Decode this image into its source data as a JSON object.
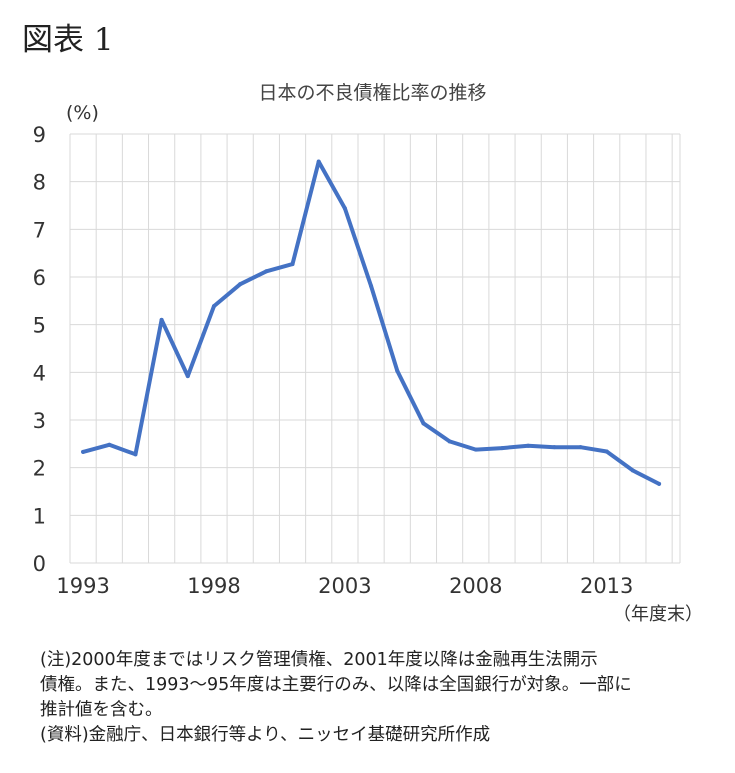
{
  "figure_label": "図表 1",
  "notes": {
    "line1": "(注)2000年度まではリスク管理債権、2001年度以降は金融再生法開示",
    "line2": "債権。また、1993～95年度は主要行のみ、以降は全国銀行が対象。一部に",
    "line3": "推計値を含む。",
    "line4": "(資料)金融庁、日本銀行等より、ニッセイ基礎研究所作成"
  },
  "chart_data": {
    "type": "line",
    "title": "日本の不良債権比率の推移",
    "ylabel": "(%)",
    "xlabel": "（年度末）",
    "x": [
      1993,
      1994,
      1995,
      1996,
      1997,
      1998,
      1999,
      2000,
      2001,
      2002,
      2003,
      2004,
      2005,
      2006,
      2007,
      2008,
      2009,
      2010,
      2011,
      2012,
      2013,
      2014,
      2015
    ],
    "series": [
      {
        "values": [
          2.33,
          2.48,
          2.28,
          5.1,
          3.92,
          5.39,
          5.85,
          6.12,
          6.27,
          8.42,
          7.44,
          5.81,
          4.03,
          2.93,
          2.55,
          2.38,
          2.41,
          2.46,
          2.43,
          2.43,
          2.34,
          1.94,
          1.66
        ],
        "color": "#4472C4"
      }
    ],
    "xticks": [
      1993,
      1998,
      2003,
      2008,
      2013
    ],
    "ylim": [
      0,
      9
    ],
    "yticks": [
      0,
      1,
      2,
      3,
      4,
      5,
      6,
      7,
      8,
      9
    ],
    "grid": true
  }
}
